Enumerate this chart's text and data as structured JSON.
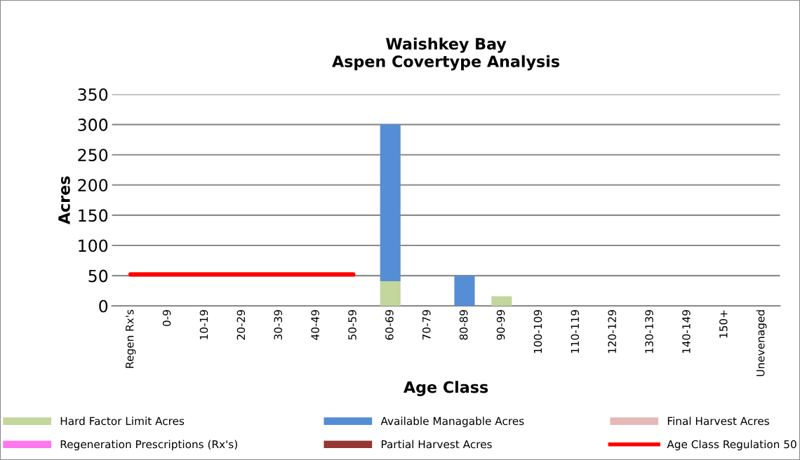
{
  "chart_data": {
    "type": "bar",
    "title": "Waishkey Bay\nAspen Covertype Analysis",
    "xlabel": "Age Class",
    "ylabel": "Acres",
    "categories": [
      "Regen Rx's",
      "0-9",
      "10-19",
      "20-29",
      "30-39",
      "40-49",
      "50-59",
      "60-69",
      "70-79",
      "80-89",
      "90-99",
      "100-109",
      "110-119",
      "120-129",
      "130-139",
      "140-149",
      "150+",
      "Unevenaged"
    ],
    "stacked": true,
    "ylim": [
      0,
      350
    ],
    "yticks": [
      0,
      50,
      100,
      150,
      200,
      250,
      300,
      350
    ],
    "grid": "y",
    "legend": "bottom",
    "series": [
      {
        "name": "Hard Factor Limit Acres",
        "color": "#c3d69b",
        "values": [
          null,
          null,
          null,
          null,
          null,
          null,
          null,
          41,
          null,
          null,
          16,
          null,
          null,
          null,
          null,
          null,
          null,
          null
        ]
      },
      {
        "name": "Regeneration Prescriptions (Rx's)",
        "color": "#ff77ee",
        "values": [
          null,
          null,
          null,
          null,
          null,
          null,
          null,
          null,
          null,
          null,
          null,
          null,
          null,
          null,
          null,
          null,
          null,
          null
        ]
      },
      {
        "name": "Available Managable Acres",
        "color": "#558ed5",
        "values": [
          null,
          null,
          null,
          null,
          null,
          null,
          null,
          259,
          null,
          50,
          null,
          null,
          null,
          null,
          null,
          null,
          null,
          null
        ]
      },
      {
        "name": "Partial Harvest Acres",
        "color": "#953735",
        "values": [
          null,
          null,
          null,
          null,
          null,
          null,
          null,
          null,
          null,
          null,
          null,
          null,
          null,
          null,
          null,
          null,
          null,
          null
        ]
      },
      {
        "name": "Final Harvest Acres",
        "color": "#e6b9b8",
        "values": [
          null,
          null,
          null,
          null,
          null,
          null,
          null,
          null,
          null,
          null,
          null,
          null,
          null,
          null,
          null,
          null,
          null,
          null
        ]
      },
      {
        "name": "Age Class Regulation 50",
        "type": "line",
        "color": "#ff0000",
        "values": [
          52,
          52,
          52,
          52,
          52,
          52,
          52,
          null,
          null,
          null,
          null,
          null,
          null,
          null,
          null,
          null,
          null,
          null
        ]
      }
    ]
  }
}
